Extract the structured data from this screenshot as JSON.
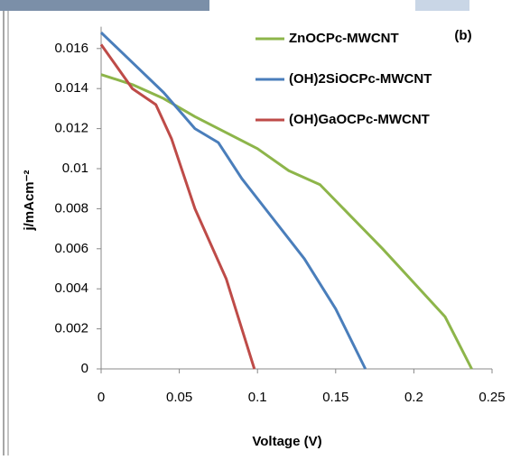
{
  "chart_data": {
    "type": "line",
    "annotation": "(b)",
    "x_label": "Voltage (V)",
    "y_label": "j/mAcm⁻²",
    "xlim": [
      0,
      0.25
    ],
    "xticks": [
      0,
      0.05,
      0.1,
      0.15,
      0.2,
      0.25
    ],
    "ylim": [
      0,
      0.017
    ],
    "yticks": [
      0,
      0.002,
      0.004,
      0.006,
      0.008,
      0.01,
      0.012,
      0.014,
      0.016
    ],
    "grid": false,
    "legend": "upper right",
    "series": [
      {
        "name": "ZnOCPc-MWCNT",
        "color": "#8db54a",
        "x": [
          0,
          0.02,
          0.04,
          0.06,
          0.08,
          0.1,
          0.12,
          0.14,
          0.16,
          0.18,
          0.2,
          0.22,
          0.237
        ],
        "values": [
          0.0147,
          0.0142,
          0.0135,
          0.0126,
          0.0118,
          0.011,
          0.0099,
          0.0092,
          0.0076,
          0.006,
          0.0043,
          0.0026,
          0
        ]
      },
      {
        "name": "(OH)2SiOCPc-MWCNT",
        "color": "#4a7ebb",
        "x": [
          0,
          0.02,
          0.04,
          0.06,
          0.075,
          0.09,
          0.11,
          0.13,
          0.15,
          0.169
        ],
        "values": [
          0.0168,
          0.0153,
          0.0138,
          0.012,
          0.0113,
          0.0095,
          0.0075,
          0.0055,
          0.003,
          0
        ]
      },
      {
        "name": "(OH)GaOCPc-MWCNT",
        "color": "#be4b48",
        "x": [
          0,
          0.02,
          0.035,
          0.045,
          0.06,
          0.08,
          0.098
        ],
        "values": [
          0.0162,
          0.014,
          0.0132,
          0.0115,
          0.008,
          0.0045,
          0
        ]
      }
    ]
  }
}
